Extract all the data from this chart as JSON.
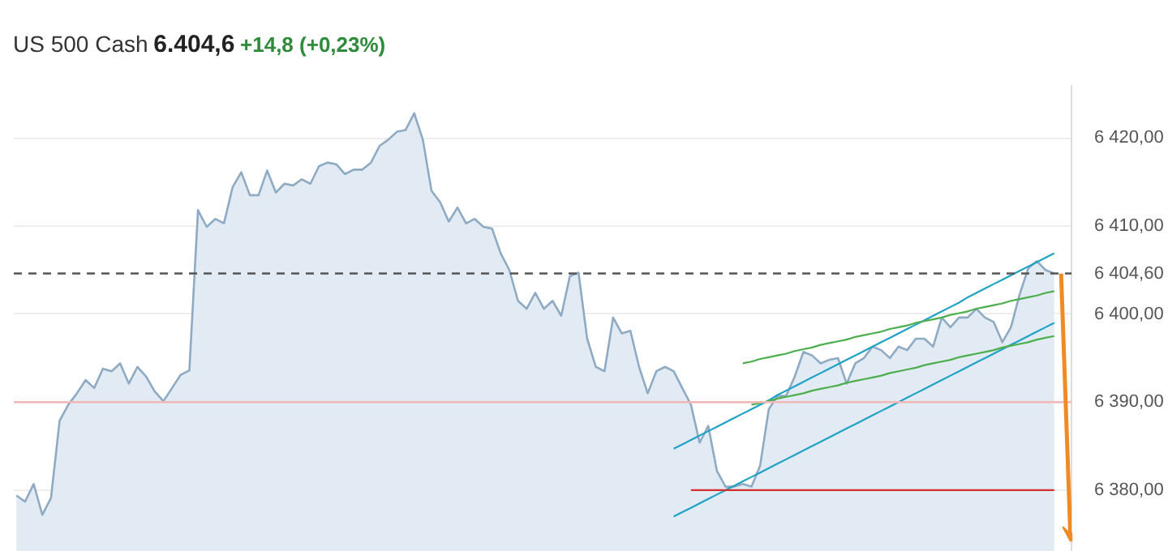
{
  "chart_data": {
    "type": "area",
    "title": "US 500 Cash",
    "annotations": [
      "6.404,6",
      "+14,8 (+0,23%)"
    ],
    "categories": [
      null,
      null,
      null,
      null,
      null,
      null,
      null,
      null,
      null,
      null,
      null,
      null,
      null,
      null,
      null,
      null,
      null,
      null,
      null,
      null,
      null,
      null,
      null,
      null,
      null,
      null,
      null,
      null,
      null,
      null,
      null,
      null,
      null,
      null,
      null,
      null,
      null,
      null,
      null,
      null,
      null,
      null,
      null,
      null,
      null,
      null,
      null,
      null,
      null,
      null,
      null,
      null,
      null,
      null,
      null,
      null,
      null,
      null,
      null,
      null,
      null,
      null,
      null,
      null,
      null,
      null,
      null,
      null,
      null,
      null,
      null,
      null,
      null,
      null,
      null,
      null,
      null,
      null,
      null,
      null,
      null,
      null,
      null,
      null,
      null,
      null,
      null,
      null,
      null,
      null,
      null,
      null,
      null,
      null,
      null,
      null,
      null,
      null,
      null,
      null,
      null,
      null,
      null,
      null,
      null,
      null,
      null,
      null,
      null,
      null,
      null,
      null,
      null,
      null,
      null,
      null,
      null,
      null,
      null,
      null,
      null
    ],
    "series": [
      {
        "color": "#8fabc4",
        "values": [
          6379.4,
          6378.7,
          6380.7,
          6377.2,
          6379.1,
          6387.9,
          6389.7,
          6391.0,
          6392.5,
          6391.6,
          6393.8,
          6393.5,
          6394.4,
          6392.1,
          6394.0,
          6392.9,
          6391.2,
          6390.1,
          6391.6,
          6393.1,
          6393.6,
          6411.8,
          6409.9,
          6410.8,
          6410.3,
          6414.4,
          6416.1,
          6413.5,
          6413.5,
          6416.3,
          6413.8,
          6414.8,
          6414.6,
          6415.3,
          6414.8,
          6416.8,
          6417.2,
          6417.0,
          6415.9,
          6416.4,
          6416.4,
          6417.2,
          6419.1,
          6419.8,
          6420.7,
          6420.9,
          6422.8,
          6419.8,
          6414.0,
          6412.7,
          6410.5,
          6412.1,
          6410.3,
          6410.8,
          6409.9,
          6409.7,
          6406.9,
          6405.0,
          6401.5,
          6400.6,
          6402.4,
          6400.6,
          6401.5,
          6399.8,
          6404.3,
          6404.7,
          6397.2,
          6394.0,
          6393.5,
          6399.6,
          6397.8,
          6398.1,
          6394.0,
          6391.0,
          6393.5,
          6394.0,
          6393.5,
          6391.6,
          6389.7,
          6385.4,
          6387.3,
          6382.2,
          6380.4,
          6380.4,
          6380.7,
          6380.4,
          6382.8,
          6389.2,
          6390.7,
          6390.7,
          6392.9,
          6395.7,
          6395.3,
          6394.4,
          6394.8,
          6395.0,
          6392.1,
          6394.4,
          6395.0,
          6396.3,
          6395.9,
          6395.0,
          6396.3,
          6395.9,
          6397.2,
          6397.2,
          6396.3,
          6399.6,
          6398.5,
          6399.6,
          6399.6,
          6400.6,
          6399.6,
          6399.1,
          6396.8,
          6398.5,
          6402.2,
          6405.2,
          6406.0,
          6405.0,
          6404.6
        ]
      },
      {
        "type": "line",
        "color": "#1fa2c6",
        "values": [
          null,
          null,
          null,
          null,
          null,
          null,
          null,
          null,
          null,
          null,
          null,
          null,
          null,
          null,
          null,
          null,
          null,
          null,
          null,
          null,
          null,
          null,
          null,
          null,
          null,
          null,
          null,
          null,
          null,
          null,
          null,
          null,
          null,
          null,
          null,
          null,
          null,
          null,
          null,
          null,
          null,
          null,
          null,
          null,
          null,
          null,
          null,
          null,
          null,
          null,
          null,
          null,
          null,
          null,
          null,
          null,
          null,
          null,
          null,
          null,
          null,
          null,
          null,
          null,
          null,
          null,
          null,
          null,
          null,
          null,
          null,
          null,
          null,
          null,
          null,
          null,
          6384.7,
          6385.2,
          6385.7,
          6386.2,
          6386.7,
          6387.2,
          6387.7,
          6388.2,
          6388.7,
          6389.2,
          6389.7,
          6390.2,
          6390.8,
          6391.3,
          6391.8,
          6392.3,
          6392.8,
          6393.3,
          6393.8,
          6394.3,
          6394.8,
          6395.3,
          6395.8,
          6396.3,
          6396.8,
          6397.3,
          6397.8,
          6398.3,
          6398.8,
          6399.3,
          6399.8,
          6400.3,
          6400.8,
          6401.3,
          6401.9,
          6402.4,
          6402.9,
          6403.4,
          6403.9,
          6404.4,
          6404.9,
          6405.4,
          6405.9,
          6406.4,
          6406.9
        ]
      },
      {
        "type": "line",
        "color": "#1fa2c6",
        "values": [
          null,
          null,
          null,
          null,
          null,
          null,
          null,
          null,
          null,
          null,
          null,
          null,
          null,
          null,
          null,
          null,
          null,
          null,
          null,
          null,
          null,
          null,
          null,
          null,
          null,
          null,
          null,
          null,
          null,
          null,
          null,
          null,
          null,
          null,
          null,
          null,
          null,
          null,
          null,
          null,
          null,
          null,
          null,
          null,
          null,
          null,
          null,
          null,
          null,
          null,
          null,
          null,
          null,
          null,
          null,
          null,
          null,
          null,
          null,
          null,
          null,
          null,
          null,
          null,
          null,
          null,
          null,
          null,
          null,
          null,
          null,
          null,
          null,
          null,
          null,
          null,
          6377.0,
          6377.5,
          6378.0,
          6378.5,
          6379.0,
          6379.5,
          6380.0,
          6380.5,
          6381.0,
          6381.5,
          6382.0,
          6382.5,
          6383.0,
          6383.5,
          6384.0,
          6384.5,
          6385.0,
          6385.5,
          6386.0,
          6386.5,
          6387.0,
          6387.5,
          6388.0,
          6388.5,
          6389.0,
          6389.5,
          6390.0,
          6390.5,
          6391.0,
          6391.5,
          6392.0,
          6392.5,
          6393.0,
          6393.5,
          6394.0,
          6394.5,
          6395.0,
          6395.5,
          6396.0,
          6396.5,
          6397.0,
          6397.5,
          6398.0,
          6398.5,
          6399.0
        ]
      },
      {
        "type": "line",
        "color": "#4cae4c",
        "values": [
          null,
          null,
          null,
          null,
          null,
          null,
          null,
          null,
          null,
          null,
          null,
          null,
          null,
          null,
          null,
          null,
          null,
          null,
          null,
          null,
          null,
          null,
          null,
          null,
          null,
          null,
          null,
          null,
          null,
          null,
          null,
          null,
          null,
          null,
          null,
          null,
          null,
          null,
          null,
          null,
          null,
          null,
          null,
          null,
          null,
          null,
          null,
          null,
          null,
          null,
          null,
          null,
          null,
          null,
          null,
          null,
          null,
          null,
          null,
          null,
          null,
          null,
          null,
          null,
          null,
          null,
          null,
          null,
          null,
          null,
          null,
          null,
          null,
          null,
          null,
          null,
          null,
          null,
          null,
          null,
          null,
          null,
          null,
          null,
          6394.4,
          6394.6,
          6394.9,
          6395.1,
          6395.3,
          6395.5,
          6395.8,
          6396.0,
          6396.2,
          6396.5,
          6396.7,
          6396.9,
          6397.1,
          6397.4,
          6397.6,
          6397.8,
          6398.0,
          6398.3,
          6398.5,
          6398.7,
          6399.0,
          6399.2,
          6399.4,
          6399.6,
          6399.9,
          6400.1,
          6400.3,
          6400.6,
          6400.8,
          6401.0,
          6401.2,
          6401.5,
          6401.7,
          6401.9,
          6402.1,
          6402.4,
          6402.6
        ]
      },
      {
        "type": "line",
        "color": "#4cae4c",
        "values": [
          null,
          null,
          null,
          null,
          null,
          null,
          null,
          null,
          null,
          null,
          null,
          null,
          null,
          null,
          null,
          null,
          null,
          null,
          null,
          null,
          null,
          null,
          null,
          null,
          null,
          null,
          null,
          null,
          null,
          null,
          null,
          null,
          null,
          null,
          null,
          null,
          null,
          null,
          null,
          null,
          null,
          null,
          null,
          null,
          null,
          null,
          null,
          null,
          null,
          null,
          null,
          null,
          null,
          null,
          null,
          null,
          null,
          null,
          null,
          null,
          null,
          null,
          null,
          null,
          null,
          null,
          null,
          null,
          null,
          null,
          null,
          null,
          null,
          null,
          null,
          null,
          null,
          null,
          null,
          null,
          null,
          null,
          null,
          null,
          null,
          6389.7,
          6389.9,
          6390.1,
          6390.4,
          6390.6,
          6390.8,
          6391.0,
          6391.3,
          6391.5,
          6391.7,
          6391.9,
          6392.2,
          6392.4,
          6392.6,
          6392.8,
          6393.0,
          6393.3,
          6393.5,
          6393.7,
          6393.9,
          6394.2,
          6394.4,
          6394.6,
          6394.8,
          6395.1,
          6395.3,
          6395.5,
          6395.7,
          6395.9,
          6396.2,
          6396.4,
          6396.6,
          6396.8,
          6397.1,
          6397.3,
          6397.5
        ]
      },
      {
        "type": "line",
        "color": "#d32f2f",
        "values": [
          null,
          null,
          null,
          null,
          null,
          null,
          null,
          null,
          null,
          null,
          null,
          null,
          null,
          null,
          null,
          null,
          null,
          null,
          null,
          null,
          null,
          null,
          null,
          null,
          null,
          null,
          null,
          null,
          null,
          null,
          null,
          null,
          null,
          null,
          null,
          null,
          null,
          null,
          null,
          null,
          null,
          null,
          null,
          null,
          null,
          null,
          null,
          null,
          null,
          null,
          null,
          null,
          null,
          null,
          null,
          null,
          null,
          null,
          null,
          null,
          null,
          null,
          null,
          null,
          null,
          null,
          null,
          null,
          null,
          null,
          null,
          null,
          null,
          null,
          null,
          null,
          null,
          null,
          6380,
          6380,
          6380,
          6380,
          6380,
          6380,
          6380,
          6380,
          6380,
          6380,
          6380,
          6380,
          6380,
          6380,
          6380,
          6380,
          6380,
          6380,
          6380,
          6380,
          6380,
          6380,
          6380,
          6380,
          6380,
          6380,
          6380,
          6380,
          6380,
          6380,
          6380,
          6380,
          6380,
          6380,
          6380,
          6380,
          6380,
          6380,
          6380,
          6380,
          6380,
          6380,
          6380
        ]
      }
    ],
    "ylim": [
      6373,
      6426
    ],
    "yticks": [
      {
        "value": 6380,
        "label": "6 380,00"
      },
      {
        "value": 6390,
        "label": "6 390,00"
      },
      {
        "value": 6400,
        "label": "6 400,00"
      },
      {
        "value": 6410,
        "label": "6 410,00"
      },
      {
        "value": 6420,
        "label": "6 420,00"
      }
    ],
    "grid": "y",
    "tick_labels": "y",
    "ref_lines": [
      {
        "axis": "y",
        "value": 6390,
        "color": "#f2b8b8"
      },
      {
        "axis": "y",
        "value": 6404.6,
        "label": "6 404,60",
        "color": "#555555",
        "line_style": "dashed"
      }
    ]
  }
}
